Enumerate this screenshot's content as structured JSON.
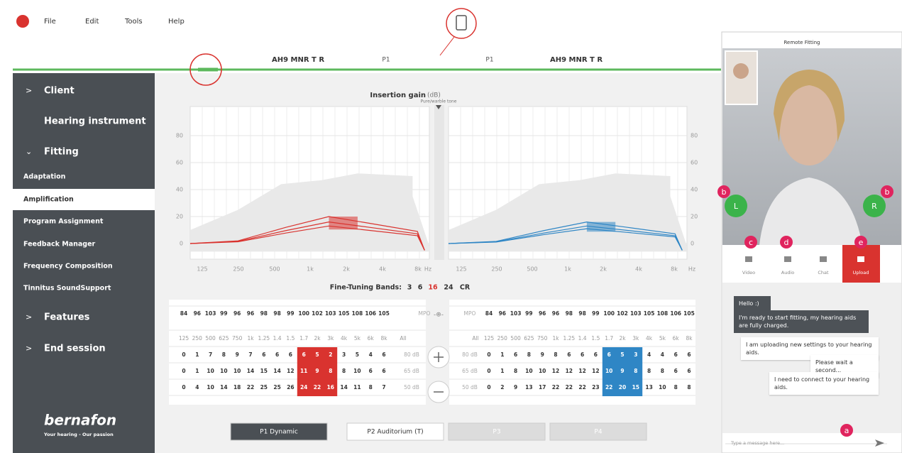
{
  "menu": [
    "File",
    "Edit",
    "Tools",
    "Help"
  ],
  "toolbar": {
    "left_device": "AH9 MNR T R",
    "right_device": "AH9 MNR T R",
    "left_program": "P1",
    "right_program": "P1"
  },
  "sidebar": [
    "Client",
    "Hearing instrument",
    "Fitting",
    "Adaptation",
    "Amplification",
    "Program Assignment",
    "Feedback Manager",
    "Frequency Composition",
    "Tinnitus SoundSupport",
    "Features",
    "End session"
  ],
  "brand": {
    "name": "bernafon",
    "tagline": "Your hearing - Our passion"
  },
  "graph": {
    "title": "Insertion gain",
    "unit": "(dB)",
    "subtitle": "Pure/warble tone",
    "yticks": [
      0,
      20,
      40,
      60,
      80
    ],
    "xticks": [
      "125",
      "250",
      "500",
      "1k",
      "2k",
      "4k",
      "8k",
      "Hz"
    ]
  },
  "fine_tuning": {
    "label": "Fine-Tuning Bands:",
    "options": [
      "3",
      "6",
      "16",
      "24",
      "CR"
    ]
  },
  "left_table": {
    "mpo_label": "MPO",
    "mpo": [
      84,
      96,
      103,
      99,
      96,
      96,
      98,
      98,
      99,
      100,
      102,
      103,
      105,
      108,
      106,
      105
    ],
    "all_label": "All",
    "frequencies": [
      "125",
      "250",
      "500",
      "625",
      "750",
      "1k",
      "1.25",
      "1.4",
      "1.5",
      "1.7",
      "2k",
      "3k",
      "4k",
      "5k",
      "6k",
      "8k"
    ],
    "rows": [
      {
        "level": "80 dB",
        "values": [
          0,
          1,
          7,
          8,
          9,
          7,
          6,
          6,
          6,
          6,
          5,
          2,
          3,
          5,
          4,
          6
        ]
      },
      {
        "level": "65 dB",
        "values": [
          0,
          1,
          10,
          10,
          10,
          14,
          15,
          14,
          12,
          11,
          9,
          8,
          8,
          10,
          6,
          6
        ]
      },
      {
        "level": "50 dB",
        "values": [
          0,
          4,
          10,
          14,
          18,
          22,
          25,
          25,
          26,
          24,
          22,
          16,
          14,
          11,
          8,
          7
        ]
      }
    ]
  },
  "right_table": {
    "mpo_label": "MPO",
    "mpo": [
      84,
      96,
      103,
      99,
      96,
      96,
      98,
      98,
      99,
      100,
      102,
      103,
      105,
      108,
      106,
      105
    ],
    "all_label": "All",
    "frequencies": [
      "125",
      "250",
      "500",
      "625",
      "750",
      "1k",
      "1.25",
      "1.4",
      "1.5",
      "1.7",
      "2k",
      "3k",
      "4k",
      "5k",
      "6k",
      "8k"
    ],
    "rows": [
      {
        "level": "80 dB",
        "values": [
          0,
          1,
          6,
          8,
          9,
          8,
          6,
          6,
          6,
          6,
          5,
          3,
          4,
          4,
          6,
          6
        ]
      },
      {
        "level": "65 dB",
        "values": [
          0,
          1,
          8,
          10,
          10,
          12,
          12,
          12,
          12,
          10,
          9,
          8,
          8,
          8,
          6,
          6
        ]
      },
      {
        "level": "50 dB",
        "values": [
          0,
          2,
          9,
          13,
          17,
          22,
          22,
          22,
          23,
          22,
          20,
          15,
          13,
          10,
          8,
          8
        ]
      }
    ]
  },
  "programs": [
    "P1 Dynamic",
    "P2 Auditorium (T)",
    "P3",
    "P4"
  ],
  "remote": {
    "title": "Remote Fitting",
    "left": "L",
    "right": "R",
    "buttons": [
      "Video",
      "Audio",
      "Chat",
      "Upload"
    ],
    "messages": [
      "Hello :)",
      "I'm ready to start fitting, my hearing aids are fully charged.",
      "I am uploading new settings to your hearing aids.",
      "Please wait a second...",
      "I need to connect to your hearing aids."
    ],
    "placeholder": "Type a message here..."
  },
  "callouts": [
    "b",
    "b",
    "c",
    "d",
    "e",
    "a"
  ]
}
